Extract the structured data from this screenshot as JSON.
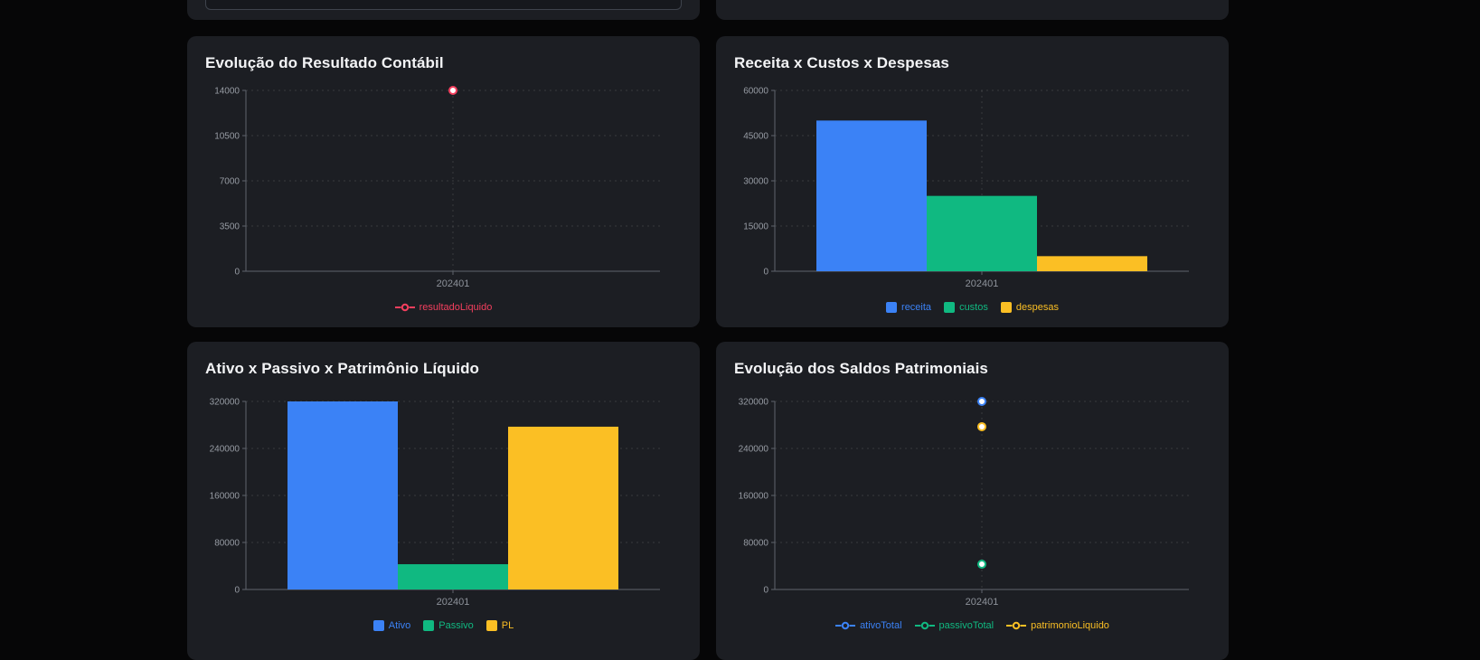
{
  "page": {
    "background_color": "#060607",
    "card_color": "#1c1e23"
  },
  "top_partial_row": {
    "left_card_note": "bottom edge of a card with an input field cut off at top",
    "right_card_note": "bottom edge of an empty card"
  },
  "palette": {
    "blue": "#3b82f6",
    "green": "#10b981",
    "yellow": "#fbbf24",
    "pink": "#f43f5e",
    "axis": "#5f646c",
    "grid": "rgba(255,255,255,0.12)"
  },
  "chart_data": [
    {
      "type": "line",
      "title": "Evolução do Resultado Contábil",
      "x": [
        "202401"
      ],
      "series": [
        {
          "name": "resultadoLiquido",
          "color": "#f43f5e",
          "values": [
            14000
          ]
        }
      ],
      "y_ticks": [
        0,
        3500,
        7000,
        10500,
        14000
      ],
      "ylim": [
        0,
        14000
      ],
      "xlabel": "",
      "ylabel": "",
      "grid": "dashed",
      "legend_position": "bottom",
      "legend_icon": "line"
    },
    {
      "type": "bar",
      "title": "Receita x Custos x Despesas",
      "x": [
        "202401"
      ],
      "series": [
        {
          "name": "receita",
          "color": "#3b82f6",
          "values": [
            50000
          ]
        },
        {
          "name": "custos",
          "color": "#10b981",
          "values": [
            25000
          ]
        },
        {
          "name": "despesas",
          "color": "#fbbf24",
          "values": [
            5000
          ]
        }
      ],
      "y_ticks": [
        0,
        15000,
        30000,
        45000,
        60000
      ],
      "ylim": [
        0,
        60000
      ],
      "xlabel": "",
      "ylabel": "",
      "grid": "dashed",
      "legend_position": "bottom",
      "legend_icon": "square"
    },
    {
      "type": "bar",
      "title": "Ativo x Passivo x Patrimônio Líquido",
      "x": [
        "202401"
      ],
      "series": [
        {
          "name": "Ativo",
          "color": "#3b82f6",
          "values": [
            320000
          ]
        },
        {
          "name": "Passivo",
          "color": "#10b981",
          "values": [
            43000
          ]
        },
        {
          "name": "PL",
          "color": "#fbbf24",
          "values": [
            277000
          ]
        }
      ],
      "y_ticks": [
        0,
        80000,
        160000,
        240000,
        320000
      ],
      "ylim": [
        0,
        320000
      ],
      "xlabel": "",
      "ylabel": "",
      "grid": "dashed",
      "legend_position": "bottom",
      "legend_icon": "square"
    },
    {
      "type": "line",
      "title": "Evolução dos Saldos Patrimoniais",
      "x": [
        "202401"
      ],
      "series": [
        {
          "name": "ativoTotal",
          "color": "#3b82f6",
          "values": [
            320000
          ]
        },
        {
          "name": "passivoTotal",
          "color": "#10b981",
          "values": [
            43000
          ]
        },
        {
          "name": "patrimonioLiquido",
          "color": "#fbbf24",
          "values": [
            277000
          ]
        }
      ],
      "y_ticks": [
        0,
        80000,
        160000,
        240000,
        320000
      ],
      "ylim": [
        0,
        320000
      ],
      "xlabel": "",
      "ylabel": "",
      "grid": "dashed",
      "legend_position": "bottom",
      "legend_icon": "line"
    }
  ]
}
